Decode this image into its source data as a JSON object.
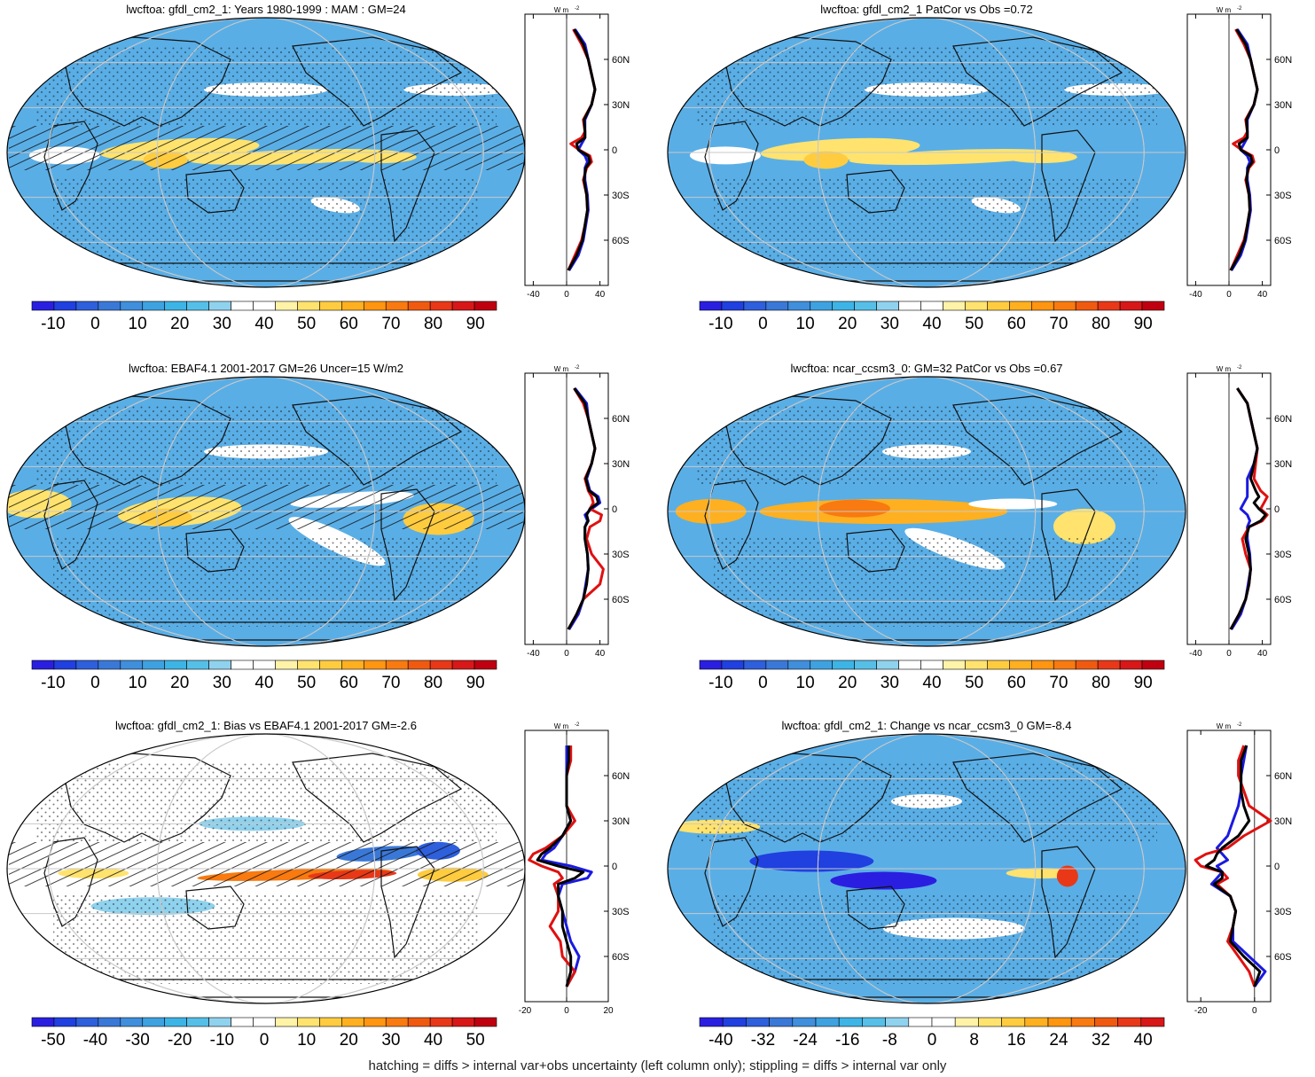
{
  "palettes": {
    "mean": [
      "#2a1fe0",
      "#2040e0",
      "#2e5fdc",
      "#3a78d8",
      "#3f8fdc",
      "#3ea2e0",
      "#3db4e6",
      "#56bfe8",
      "#8fd2ee",
      "#ffffff",
      "#ffffff",
      "#fff3a8",
      "#ffe36e",
      "#ffcc40",
      "#ffb020",
      "#ff9510",
      "#f87a10",
      "#f05a10",
      "#e83818",
      "#d81818",
      "#c00010"
    ],
    "bias": [
      "#2a1fe0",
      "#2040e0",
      "#2e5fdc",
      "#3a78d8",
      "#3f8fdc",
      "#3ea2e0",
      "#3db4e6",
      "#56bfe8",
      "#8fd2ee",
      "#ffffff",
      "#ffffff",
      "#fff3a8",
      "#ffe36e",
      "#ffcc40",
      "#ffb020",
      "#ff9510",
      "#f87a10",
      "#f05a10",
      "#e83818",
      "#d81818",
      "#c00010"
    ],
    "change": [
      "#2a1fe0",
      "#2040e0",
      "#2e5fdc",
      "#3a78d8",
      "#3f8fdc",
      "#3ea2e0",
      "#3db4e6",
      "#56bfe8",
      "#8fd2ee",
      "#ffffff",
      "#ffffff",
      "#fff3a8",
      "#ffe36e",
      "#ffcc40",
      "#ffb020",
      "#ff9510",
      "#f87a10",
      "#f05a10",
      "#e83818",
      "#d81818"
    ]
  },
  "colors": {
    "profile_model": "#e01010",
    "profile_obs": "#1a1ae0",
    "profile_other": "#000000",
    "grid": "#c8c8c8"
  },
  "lat_labels": [
    "60N",
    "30N",
    "0",
    "30S",
    "60S"
  ],
  "unit_label": "W m",
  "unit_superscript": "-2",
  "footnote": "hatching = diffs > internal var+obs uncertainty (left column only); stippling = diffs > internal var only",
  "chart_data": [
    {
      "type": "heatmap",
      "title": "lwcftoa: gfdl_cm2_1: Years 1980-1999 : MAM : GM=24",
      "colorbar": {
        "palette": "mean",
        "labels": [
          "-10",
          "0",
          "10",
          "20",
          "30",
          "40",
          "50",
          "60",
          "70",
          "80",
          "90"
        ],
        "range": [
          -15,
          95
        ]
      },
      "profile": {
        "xticks": [
          "-40",
          "0",
          "40"
        ],
        "xlim": [
          -50,
          50
        ],
        "lat": [
          -80,
          -70,
          -60,
          -50,
          -40,
          -30,
          -20,
          -12,
          -8,
          -4,
          0,
          4,
          8,
          12,
          20,
          30,
          40,
          50,
          60,
          70,
          80
        ],
        "model": [
          2,
          10,
          18,
          22,
          25,
          24,
          20,
          24,
          30,
          28,
          15,
          5,
          18,
          22,
          20,
          30,
          34,
          30,
          26,
          18,
          8
        ],
        "obs": [
          3,
          14,
          20,
          23,
          26,
          25,
          22,
          22,
          25,
          22,
          14,
          18,
          22,
          22,
          22,
          30,
          34,
          30,
          26,
          22,
          10
        ],
        "other": [
          2,
          12,
          19,
          22,
          25,
          24,
          21,
          23,
          28,
          26,
          14,
          12,
          22,
          22,
          21,
          30,
          34,
          30,
          26,
          20,
          9
        ]
      }
    },
    {
      "type": "heatmap",
      "title": "lwcftoa: gfdl_cm2_1 PatCor vs Obs =0.72",
      "colorbar": {
        "palette": "mean",
        "labels": [
          "-10",
          "0",
          "10",
          "20",
          "30",
          "40",
          "50",
          "60",
          "70",
          "80",
          "90"
        ],
        "range": [
          -15,
          95
        ]
      },
      "profile": {
        "xticks": [
          "-40",
          "0",
          "40"
        ],
        "xlim": [
          -50,
          50
        ],
        "lat": [
          -80,
          -70,
          -60,
          -50,
          -40,
          -30,
          -20,
          -12,
          -8,
          -4,
          0,
          4,
          8,
          12,
          20,
          30,
          40,
          50,
          60,
          70,
          80
        ],
        "model": [
          2,
          10,
          18,
          22,
          25,
          24,
          20,
          24,
          30,
          28,
          15,
          5,
          18,
          22,
          20,
          30,
          34,
          30,
          26,
          18,
          8
        ],
        "obs": [
          3,
          14,
          20,
          23,
          26,
          25,
          22,
          22,
          25,
          22,
          14,
          18,
          22,
          22,
          22,
          30,
          34,
          30,
          26,
          22,
          10
        ],
        "other": [
          2,
          12,
          19,
          22,
          25,
          24,
          21,
          23,
          28,
          26,
          14,
          12,
          22,
          22,
          21,
          30,
          34,
          30,
          26,
          20,
          9
        ]
      }
    },
    {
      "type": "heatmap",
      "title": "lwcftoa: EBAF4.1 2001-2017 GM=26 Uncer=15 W/m2",
      "colorbar": {
        "palette": "mean",
        "labels": [
          "-10",
          "0",
          "10",
          "20",
          "30",
          "40",
          "50",
          "60",
          "70",
          "80",
          "90"
        ],
        "range": [
          -15,
          95
        ]
      },
      "profile": {
        "xticks": [
          "-40",
          "0",
          "40"
        ],
        "xlim": [
          -50,
          50
        ],
        "lat": [
          -80,
          -70,
          -60,
          -50,
          -40,
          -30,
          -20,
          -12,
          -8,
          -4,
          0,
          4,
          8,
          12,
          20,
          30,
          40,
          50,
          60,
          70,
          80
        ],
        "model": [
          2,
          12,
          20,
          40,
          44,
          30,
          24,
          28,
          40,
          42,
          28,
          32,
          30,
          26,
          22,
          30,
          34,
          30,
          26,
          20,
          9
        ],
        "obs": [
          3,
          14,
          20,
          23,
          26,
          25,
          22,
          22,
          25,
          22,
          30,
          40,
          38,
          28,
          24,
          30,
          34,
          30,
          26,
          24,
          10
        ],
        "other": [
          2,
          12,
          20,
          24,
          26,
          25,
          22,
          22,
          26,
          24,
          28,
          38,
          36,
          27,
          23,
          30,
          34,
          30,
          26,
          22,
          9
        ]
      }
    },
    {
      "type": "heatmap",
      "title": "lwcftoa: ncar_ccsm3_0: GM=32 PatCor vs Obs =0.67",
      "colorbar": {
        "palette": "mean",
        "labels": [
          "-10",
          "0",
          "10",
          "20",
          "30",
          "40",
          "50",
          "60",
          "70",
          "80",
          "90"
        ],
        "range": [
          -15,
          95
        ]
      },
      "profile": {
        "xticks": [
          "-40",
          "0",
          "40"
        ],
        "xlim": [
          -50,
          50
        ],
        "lat": [
          -80,
          -70,
          -60,
          -50,
          -40,
          -30,
          -20,
          -12,
          -8,
          -4,
          0,
          4,
          8,
          12,
          20,
          30,
          40,
          50,
          60,
          70,
          80
        ],
        "model": [
          2,
          12,
          20,
          24,
          26,
          20,
          16,
          24,
          40,
          46,
          38,
          42,
          46,
          38,
          30,
          32,
          34,
          30,
          26,
          22,
          10
        ],
        "obs": [
          3,
          14,
          20,
          23,
          26,
          25,
          22,
          22,
          25,
          22,
          14,
          18,
          22,
          22,
          22,
          30,
          34,
          30,
          26,
          22,
          10
        ],
        "other": [
          2,
          12,
          20,
          24,
          26,
          24,
          20,
          24,
          38,
          44,
          36,
          30,
          36,
          32,
          26,
          30,
          34,
          30,
          26,
          22,
          10
        ]
      }
    },
    {
      "type": "heatmap",
      "title": "lwcftoa: gfdl_cm2_1: Bias vs EBAF4.1 2001-2017 GM=-2.6",
      "colorbar": {
        "palette": "bias",
        "labels": [
          "-50",
          "-40",
          "-30",
          "-20",
          "-10",
          "0",
          "10",
          "20",
          "30",
          "40",
          "50"
        ],
        "range": [
          -55,
          55
        ]
      },
      "profile": {
        "xticks": [
          "-20",
          "0",
          "20"
        ],
        "xlim": [
          -20,
          20
        ],
        "lat": [
          -80,
          -70,
          -60,
          -50,
          -40,
          -30,
          -20,
          -12,
          -8,
          -4,
          0,
          4,
          8,
          12,
          20,
          30,
          40,
          50,
          60,
          70,
          80
        ],
        "model": [
          0,
          4,
          -2,
          -3,
          -8,
          -4,
          -4,
          -6,
          -2,
          -4,
          -12,
          -18,
          -16,
          -10,
          -2,
          4,
          0,
          0,
          0,
          2,
          2
        ],
        "obs": [
          0,
          4,
          6,
          2,
          0,
          -2,
          -4,
          -2,
          10,
          12,
          2,
          -12,
          -10,
          -6,
          -2,
          2,
          0,
          0,
          0,
          0,
          0
        ],
        "other": [
          0,
          2,
          2,
          0,
          -2,
          -2,
          -4,
          -4,
          4,
          8,
          -4,
          -14,
          -12,
          -8,
          -2,
          2,
          0,
          0,
          0,
          1,
          1
        ]
      }
    },
    {
      "type": "heatmap",
      "title": "lwcftoa: gfdl_cm2_1: Change vs ncar_ccsm3_0 GM=-8.4",
      "colorbar": {
        "palette": "change",
        "labels": [
          "-40",
          "-32",
          "-24",
          "-16",
          "-8",
          "0",
          "8",
          "16",
          "24",
          "32",
          "40"
        ],
        "range": [
          -44,
          44
        ]
      },
      "profile": {
        "xticks": [
          "-20",
          "0"
        ],
        "xlim": [
          -25,
          6
        ],
        "lat": [
          -80,
          -70,
          -60,
          -50,
          -40,
          -30,
          -20,
          -12,
          -8,
          -4,
          0,
          4,
          8,
          12,
          20,
          30,
          40,
          50,
          60,
          70,
          80
        ],
        "model": [
          0,
          -2,
          -6,
          -10,
          -8,
          -7,
          -9,
          -14,
          -10,
          -12,
          -20,
          -22,
          -18,
          -10,
          -4,
          6,
          -2,
          -4,
          -6,
          -6,
          -4
        ],
        "obs": [
          0,
          4,
          -2,
          -8,
          -8,
          -7,
          -9,
          -16,
          -14,
          -12,
          -14,
          -10,
          -12,
          -14,
          -10,
          -8,
          -6,
          -5,
          -5,
          -4,
          -3
        ],
        "other": [
          0,
          2,
          -4,
          -9,
          -8,
          -7,
          -9,
          -15,
          -12,
          -12,
          -18,
          -15,
          -14,
          -12,
          -6,
          -2,
          -4,
          -5,
          -5,
          -5,
          -3
        ]
      }
    }
  ]
}
